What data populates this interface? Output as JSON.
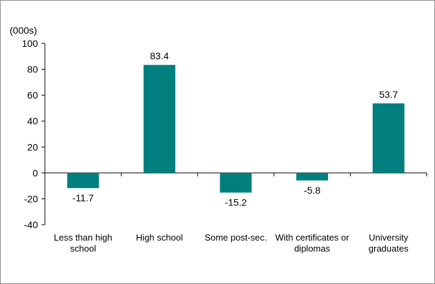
{
  "chart_data": {
    "type": "bar",
    "title": "",
    "unit_label": "(000s)",
    "xlabel": "",
    "ylabel": "",
    "ylim": [
      -40,
      100
    ],
    "yticks": [
      100,
      80,
      60,
      40,
      20,
      0,
      -20,
      -40
    ],
    "ytick_labels": [
      "100",
      "80",
      "60",
      "40",
      "20",
      "0",
      "-20",
      "-40"
    ],
    "grid": false,
    "bar_color": "#007f7f",
    "categories": [
      "Less than high school",
      "High school",
      "Some post-sec.",
      "With certificates or diplomas",
      "University graduates"
    ],
    "values": [
      -11.7,
      83.4,
      -15.2,
      -5.8,
      53.7
    ],
    "value_labels": [
      "-11.7",
      "83.4",
      "-15.2",
      "-5.8",
      "53.7"
    ]
  }
}
